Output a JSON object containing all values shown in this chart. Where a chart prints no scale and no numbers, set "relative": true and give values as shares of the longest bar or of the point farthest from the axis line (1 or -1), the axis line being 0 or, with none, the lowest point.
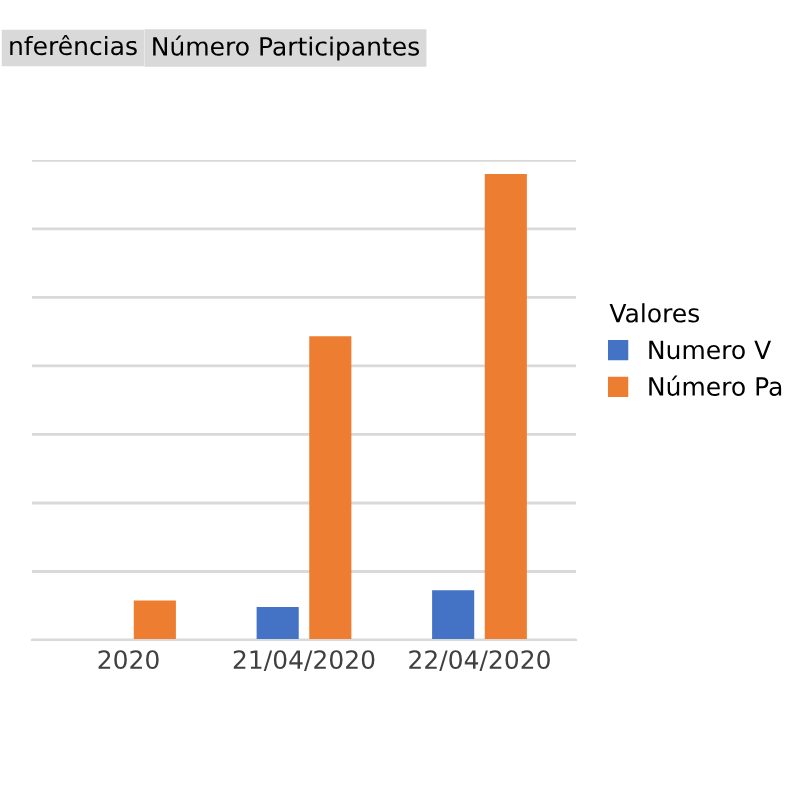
{
  "chart_data": {
    "type": "bar",
    "relative": true,
    "categories": [
      "2020",
      "21/04/2020",
      "22/04/2020"
    ],
    "series": [
      {
        "name": "Numero V",
        "color": "#4472c4",
        "values": [
          null,
          0.071,
          0.107
        ]
      },
      {
        "name": "Número Pa",
        "color": "#ed7d31",
        "values": [
          0.085,
          0.652,
          1
        ]
      }
    ],
    "legend_title": "Valores",
    "legend": "right",
    "grid": "y",
    "annotations": [
      "nferências",
      "Número Participantes"
    ]
  }
}
